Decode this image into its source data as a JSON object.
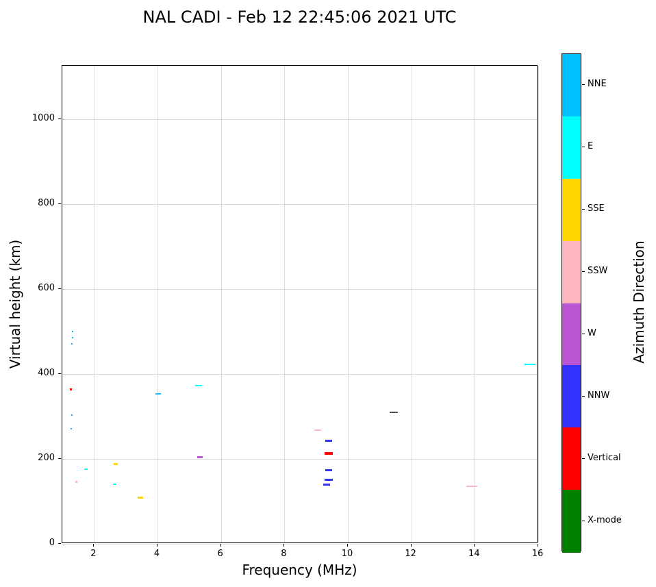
{
  "chart_data": {
    "type": "scatter",
    "title": "NAL CADI - Feb 12 22:45:06 2021 UTC",
    "xlabel": "Frequency (MHz)",
    "ylabel": "Virtual height (km)",
    "xlim": [
      1,
      16
    ],
    "ylim": [
      0,
      1125
    ],
    "xticks": [
      2,
      4,
      6,
      8,
      10,
      12,
      14,
      16
    ],
    "yticks": [
      0,
      200,
      400,
      600,
      800,
      1000
    ],
    "grid": true,
    "grid_color": "#dcdcdc",
    "palette": {
      "NNE": "#00bfff",
      "E": "#00ffff",
      "SSE": "#ffd700",
      "SSW": "#ffb6c1",
      "W": "#ba55d3",
      "NNW": "#3232ff",
      "Vertical": "#ff0000",
      "X-mode": "#008000"
    },
    "colorbar": {
      "label": "Azimuth Direction",
      "order": "top-to-bottom",
      "categories": [
        {
          "label": "NNE",
          "color": "#00bfff"
        },
        {
          "label": "E",
          "color": "#00ffff"
        },
        {
          "label": "SSE",
          "color": "#ffd700"
        },
        {
          "label": "SSW",
          "color": "#ffb6c1"
        },
        {
          "label": "W",
          "color": "#ba55d3"
        },
        {
          "label": "NNW",
          "color": "#3232ff"
        },
        {
          "label": "Vertical",
          "color": "#ff0000"
        },
        {
          "label": "X-mode",
          "color": "#008000"
        }
      ]
    },
    "points": [
      {
        "x": 1.32,
        "y": 500,
        "dir": "NNE",
        "w": 2,
        "h": 2
      },
      {
        "x": 1.32,
        "y": 485,
        "dir": "NNE",
        "w": 2,
        "h": 2
      },
      {
        "x": 1.3,
        "y": 470,
        "dir": "NNE",
        "w": 2,
        "h": 2
      },
      {
        "x": 1.27,
        "y": 363,
        "dir": "Vertical",
        "w": 3,
        "h": 3
      },
      {
        "x": 1.3,
        "y": 303,
        "dir": "NNE",
        "w": 2,
        "h": 2
      },
      {
        "x": 1.28,
        "y": 271,
        "dir": "NNE",
        "w": 2,
        "h": 2
      },
      {
        "x": 1.45,
        "y": 146,
        "dir": "SSW",
        "w": 3,
        "h": 3
      },
      {
        "x": 1.75,
        "y": 176,
        "dir": "E",
        "w": 5,
        "h": 2
      },
      {
        "x": 2.68,
        "y": 187,
        "dir": "SSE",
        "w": 6,
        "h": 3
      },
      {
        "x": 2.66,
        "y": 141,
        "dir": "E",
        "w": 5,
        "h": 2
      },
      {
        "x": 3.47,
        "y": 108,
        "dir": "SSE",
        "w": 8,
        "h": 3
      },
      {
        "x": 4.03,
        "y": 353,
        "dir": "NNE",
        "w": 8,
        "h": 2
      },
      {
        "x": 5.3,
        "y": 372,
        "dir": "E",
        "w": 10,
        "h": 2
      },
      {
        "x": 5.33,
        "y": 204,
        "dir": "W",
        "w": 8,
        "h": 3
      },
      {
        "x": 9.05,
        "y": 268,
        "dir": "SSW",
        "w": 10,
        "h": 2
      },
      {
        "x": 9.4,
        "y": 243,
        "dir": "NNW",
        "w": 10,
        "h": 3
      },
      {
        "x": 9.4,
        "y": 213,
        "dir": "Vertical",
        "w": 12,
        "h": 4
      },
      {
        "x": 9.4,
        "y": 173,
        "dir": "NNW",
        "w": 10,
        "h": 3
      },
      {
        "x": 9.4,
        "y": 151,
        "dir": "NNW",
        "w": 12,
        "h": 3
      },
      {
        "x": 9.33,
        "y": 140,
        "dir": "NNW",
        "w": 10,
        "h": 3
      },
      {
        "x": 11.45,
        "y": 310,
        "dir": "overlap",
        "color": "#5a5046",
        "w": 12,
        "h": 2
      },
      {
        "x": 13.9,
        "y": 135,
        "dir": "SSW",
        "w": 16,
        "h": 2
      },
      {
        "x": 15.75,
        "y": 422,
        "dir": "E",
        "w": 16,
        "h": 2
      }
    ]
  }
}
